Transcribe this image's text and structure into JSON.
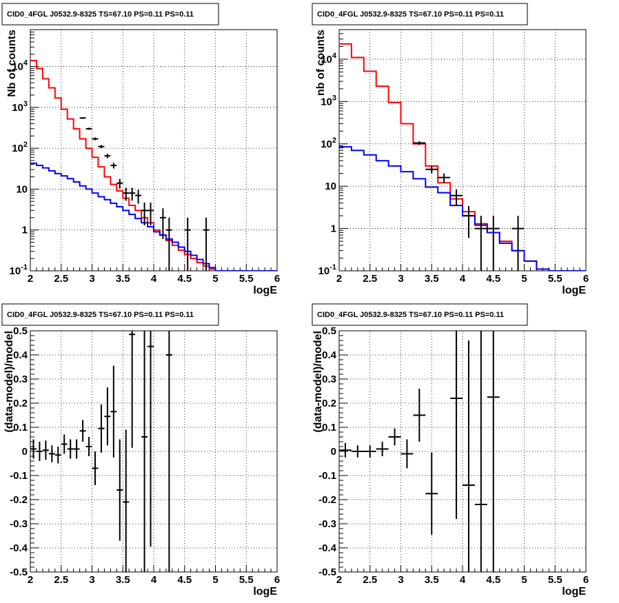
{
  "chart_data": [
    {
      "type": "line",
      "title": "CID0_4FGL J0532.9-8325 TS=67.10 PS=0.11 PS=0.11",
      "xlabel": "logE",
      "ylabel": "Nb of counts",
      "xlim": [
        2,
        6
      ],
      "ylim": [
        0.1,
        80000
      ],
      "yscale": "log",
      "grid": true,
      "x_ticks": [
        "2",
        "2.5",
        "3",
        "3.5",
        "4",
        "4.5",
        "5",
        "5.5",
        "6"
      ],
      "y_ticks": [
        "10^-1",
        "1",
        "10",
        "10^2",
        "10^3",
        "10^4"
      ],
      "bin_width": 0.1,
      "series": [
        {
          "color": "#ff0000",
          "x": [
            2.05,
            2.15,
            2.25,
            2.35,
            2.45,
            2.55,
            2.65,
            2.75,
            2.85,
            2.95,
            3.05,
            3.15,
            3.25,
            3.35,
            3.45,
            3.55,
            3.65,
            3.75,
            3.85,
            3.95,
            4.05,
            4.15,
            4.25,
            4.35,
            4.45,
            4.55,
            4.65,
            4.75,
            4.85,
            4.95,
            5.05,
            5.15,
            5.25,
            5.35,
            5.45,
            5.55,
            5.65,
            5.75,
            5.85,
            5.95
          ],
          "values": [
            14000,
            9000,
            5000,
            3000,
            1700,
            900,
            520,
            300,
            170,
            100,
            60,
            35,
            20,
            13,
            9,
            6,
            4,
            3,
            2,
            1.5,
            1.0,
            0.75,
            0.55,
            0.42,
            0.32,
            0.25,
            0.2,
            0.16,
            0.13,
            0.11,
            0.1,
            0.1,
            0.1,
            0.1,
            0.1,
            0.1,
            0.1,
            0.1,
            0.1,
            0.1
          ]
        },
        {
          "color": "#0000ff",
          "x": [
            2.05,
            2.15,
            2.25,
            2.35,
            2.45,
            2.55,
            2.65,
            2.75,
            2.85,
            2.95,
            3.05,
            3.15,
            3.25,
            3.35,
            3.45,
            3.55,
            3.65,
            3.75,
            3.85,
            3.95,
            4.05,
            4.15,
            4.25,
            4.35,
            4.45,
            4.55,
            4.65,
            4.75,
            4.85,
            4.95,
            5.05,
            5.15,
            5.25,
            5.35,
            5.45,
            5.55,
            5.65,
            5.75,
            5.85,
            5.95
          ],
          "values": [
            43,
            38,
            33,
            28,
            24,
            21,
            18,
            15,
            12,
            10,
            8,
            6.5,
            5.5,
            4.5,
            3.7,
            3.0,
            2.4,
            1.9,
            1.5,
            1.2,
            0.9,
            0.75,
            0.6,
            0.5,
            0.38,
            0.3,
            0.24,
            0.19,
            0.15,
            0.12,
            0.1,
            0.1,
            0.1,
            0.1,
            0.1,
            0.1,
            0.1,
            0.1,
            0.1,
            0.1
          ]
        },
        {
          "color": "#000000",
          "style": "errorbars",
          "x": [
            2.85,
            2.95,
            3.05,
            3.15,
            3.25,
            3.35,
            3.45,
            3.55,
            3.65,
            3.75,
            3.85,
            3.95,
            4.15,
            4.25,
            4.55,
            4.85
          ],
          "values": [
            550,
            300,
            170,
            110,
            65,
            38,
            14,
            8,
            8,
            7,
            3,
            3,
            2,
            1,
            1,
            1
          ],
          "errors": [
            23,
            17,
            13,
            10,
            8,
            6,
            3.7,
            2.8,
            2.8,
            2.6,
            1.7,
            1.7,
            1.4,
            1,
            1,
            1
          ]
        }
      ]
    },
    {
      "type": "line",
      "title": "CID0_4FGL J0532.9-8325 TS=67.10 PS=0.11 PS=0.11",
      "xlabel": "logE",
      "ylabel": "nb of counts",
      "xlim": [
        2,
        6
      ],
      "ylim": [
        0.1,
        50000
      ],
      "yscale": "log",
      "grid": true,
      "x_ticks": [
        "2",
        "2.5",
        "3",
        "3.5",
        "4",
        "4.5",
        "5",
        "5.5",
        "6"
      ],
      "y_ticks": [
        "10^-1",
        "1",
        "10",
        "10^2",
        "10^3",
        "10^4"
      ],
      "bin_width": 0.2,
      "series": [
        {
          "color": "#ff0000",
          "x": [
            2.1,
            2.3,
            2.5,
            2.7,
            2.9,
            3.1,
            3.3,
            3.5,
            3.7,
            3.9,
            4.1,
            4.3,
            4.5,
            4.7,
            4.9,
            5.1,
            5.3,
            5.5,
            5.7,
            5.9
          ],
          "values": [
            23000,
            11000,
            5200,
            2300,
            950,
            300,
            100,
            30,
            12,
            5,
            2.5,
            1.3,
            0.8,
            0.5,
            0.3,
            0.17,
            0.11,
            0.1,
            0.1,
            0.1
          ]
        },
        {
          "color": "#0000ff",
          "x": [
            2.1,
            2.3,
            2.5,
            2.7,
            2.9,
            3.1,
            3.3,
            3.5,
            3.7,
            3.9,
            4.1,
            4.3,
            4.5,
            4.7,
            4.9,
            5.1,
            5.3,
            5.5,
            5.7,
            5.9
          ],
          "values": [
            85,
            70,
            55,
            40,
            30,
            22,
            15,
            9.5,
            7,
            3.5,
            2,
            1.2,
            0.8,
            0.45,
            0.3,
            0.17,
            0.11,
            0.1,
            0.1,
            0.1
          ]
        },
        {
          "color": "#000000",
          "style": "errorbars",
          "x": [
            3.3,
            3.5,
            3.7,
            3.9,
            4.1,
            4.3,
            4.5,
            4.9
          ],
          "values": [
            105,
            25,
            16,
            6,
            2,
            1,
            1,
            1
          ],
          "errors": [
            10,
            5,
            4,
            2.4,
            1.4,
            1,
            1,
            1
          ]
        }
      ]
    },
    {
      "type": "scatter",
      "title": "CID0_4FGL J0532.9-8325 TS=67.10 PS=0.11 PS=0.11",
      "xlabel": "logE",
      "ylabel": "(data-model)/model",
      "xlim": [
        2,
        6
      ],
      "ylim": [
        -0.5,
        0.5
      ],
      "grid": true,
      "x_ticks": [
        "2",
        "2.5",
        "3",
        "3.5",
        "4",
        "4.5",
        "5",
        "5.5",
        "6"
      ],
      "y_ticks": [
        "-0.5",
        "-0.4",
        "-0.3",
        "-0.2",
        "-0.1",
        "0",
        "0.1",
        "0.2",
        "0.3",
        "0.4",
        "0.5"
      ],
      "bin_width": 0.1,
      "series": [
        {
          "color": "#000000",
          "style": "errorbars",
          "x": [
            2.05,
            2.15,
            2.25,
            2.35,
            2.45,
            2.55,
            2.65,
            2.75,
            2.85,
            2.95,
            3.05,
            3.15,
            3.25,
            3.35,
            3.45,
            3.55,
            3.65,
            3.85,
            3.95,
            4.25
          ],
          "values": [
            0.01,
            0.0,
            0.005,
            -0.01,
            -0.015,
            0.03,
            0.01,
            0.01,
            0.085,
            0.02,
            -0.07,
            0.095,
            0.145,
            0.165,
            -0.16,
            -0.21,
            0.485,
            0.06,
            0.435,
            0.4
          ],
          "errors": [
            0.04,
            0.04,
            0.04,
            0.035,
            0.035,
            0.04,
            0.04,
            0.04,
            0.045,
            0.04,
            0.07,
            0.1,
            0.12,
            0.19,
            0.21,
            0.3,
            0.47,
            0.7,
            0.83,
            1.0
          ]
        }
      ]
    },
    {
      "type": "scatter",
      "title": "CID0_4FGL J0532.9-8325 TS=67.10 PS=0.11 PS=0.11",
      "xlabel": "logE",
      "ylabel": "(data-model)/model",
      "xlim": [
        2,
        6
      ],
      "ylim": [
        -0.5,
        0.5
      ],
      "grid": true,
      "x_ticks": [
        "2",
        "2.5",
        "3",
        "3.5",
        "4",
        "4.5",
        "5",
        "5.5",
        "6"
      ],
      "y_ticks": [
        "-0.5",
        "-0.4",
        "-0.3",
        "-0.2",
        "-0.1",
        "0",
        "0.1",
        "0.2",
        "0.3",
        "0.4",
        "0.5"
      ],
      "bin_width": 0.2,
      "series": [
        {
          "color": "#000000",
          "style": "errorbars",
          "x": [
            2.1,
            2.3,
            2.5,
            2.7,
            2.9,
            3.1,
            3.3,
            3.5,
            3.9,
            4.1,
            4.3,
            4.5
          ],
          "values": [
            0.005,
            0.0,
            0.0,
            0.01,
            0.06,
            -0.01,
            0.15,
            -0.175,
            0.22,
            -0.14,
            -0.22,
            0.225
          ],
          "errors": [
            0.03,
            0.025,
            0.025,
            0.03,
            0.035,
            0.06,
            0.11,
            0.17,
            0.5,
            0.6,
            0.9,
            1.0
          ]
        }
      ]
    }
  ]
}
